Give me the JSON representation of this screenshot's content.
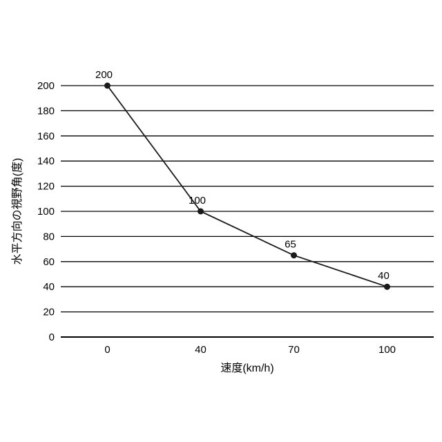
{
  "chart_data": {
    "type": "line",
    "title": "",
    "categories": [
      "0",
      "40",
      "70",
      "100"
    ],
    "series": [
      {
        "name": "水平方向の視野角",
        "values": [
          200,
          100,
          65,
          40
        ]
      }
    ],
    "data_labels": [
      "200",
      "100",
      "65",
      "40"
    ],
    "xlabel": "速度(km/h)",
    "ylabel": "水平方向の視野角(度)",
    "ylim": [
      0,
      200
    ],
    "ytick_step": 20,
    "ytick_labels": [
      "0",
      "20",
      "40",
      "60",
      "80",
      "100",
      "120",
      "140",
      "160",
      "180",
      "200"
    ],
    "grid": true,
    "legend": false,
    "marker": "circle",
    "colors": {
      "line": "#1a1a1a",
      "marker": "#1a1a1a",
      "grid": "#000000",
      "axis": "#000000",
      "text": "#000000",
      "background": "#ffffff"
    }
  }
}
